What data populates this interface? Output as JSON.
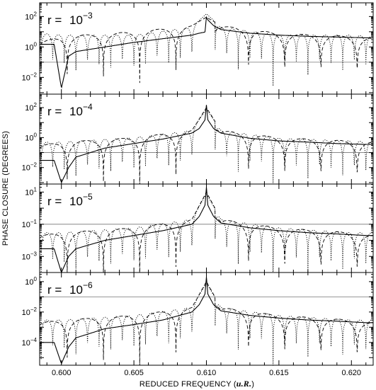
{
  "chart_data": {
    "type": "line",
    "xlabel_text": "REDUCED FREQUENCY (",
    "xlabel_unit": "u.R.",
    "xlabel_close": ")",
    "ylabel": "PHASE CLOSURE (DEGREES)",
    "xlim": [
      0.5985,
      0.6215
    ],
    "xticks": [
      0.6,
      0.605,
      0.61,
      0.615,
      0.62
    ],
    "xtick_labels": [
      "0.600",
      "0.605",
      "0.610",
      "0.615",
      "0.620"
    ],
    "y_scale": "log",
    "grid": false,
    "legend": "none",
    "resonance_x": 0.61,
    "series_styles": [
      "solid",
      "dashed",
      "dotted"
    ],
    "panels": [
      {
        "label_r": "r = ",
        "label_base": "10",
        "label_exp": "−3",
        "ylim_log10": [
          -3.1,
          2.9
        ],
        "ytick_labels": [
          {
            "base": "10",
            "exp": "2",
            "log": 2
          },
          {
            "base": "10",
            "exp": "0",
            "log": 0
          },
          {
            "base": "10",
            "exp": "−2",
            "log": -2
          }
        ],
        "reference_line": 0.1,
        "series": [
          {
            "style": "solid",
            "x": [
              0.5995,
              0.6,
              0.6005,
              0.601,
              0.603,
              0.605,
              0.607,
              0.609,
              0.6095,
              0.6099,
              0.61,
              0.6101,
              0.6105,
              0.611,
              0.613,
              0.615,
              0.617,
              0.619,
              0.621
            ],
            "y": [
              1.5,
              0.002,
              0.25,
              0.5,
              1.0,
              2.0,
              3.5,
              6.0,
              8.0,
              9.5,
              90,
              60,
              25,
              14,
              8,
              6,
              5,
              4.5,
              4.0
            ]
          },
          {
            "style": "dashed",
            "envelope_x": [
              0.5985,
              0.6,
              0.605,
              0.609,
              0.61,
              0.611,
              0.615,
              0.62,
              0.6215
            ],
            "envelope_y": [
              2.0,
              5.0,
              10.0,
              25.0,
              90.0,
              25.0,
              8.0,
              5.0,
              4.0
            ]
          },
          {
            "style": "dotted",
            "envelope_x": [
              0.5985,
              0.6,
              0.605,
              0.609,
              0.61,
              0.611,
              0.615,
              0.62,
              0.6215
            ],
            "envelope_y": [
              8.0,
              6.0,
              6.0,
              20.0,
              150.0,
              20.0,
              6.0,
              6.0,
              5.0
            ]
          }
        ]
      },
      {
        "label_r": "r = ",
        "label_base": "10",
        "label_exp": "−4",
        "ylim_log10": [
          -3.1,
          2.9
        ],
        "ytick_labels": [
          {
            "base": "10",
            "exp": "2",
            "log": 2
          },
          {
            "base": "10",
            "exp": "0",
            "log": 0
          },
          {
            "base": "10",
            "exp": "−2",
            "log": -2
          }
        ],
        "reference_line": 0.1,
        "series": [
          {
            "style": "solid",
            "x": [
              0.5995,
              0.6,
              0.6005,
              0.601,
              0.603,
              0.605,
              0.607,
              0.609,
              0.6095,
              0.6099,
              0.61,
              0.6101,
              0.6105,
              0.611,
              0.613,
              0.615,
              0.617,
              0.619,
              0.621
            ],
            "y": [
              0.03,
              0.001,
              0.01,
              0.05,
              0.2,
              0.4,
              0.8,
              2.0,
              4.0,
              15.0,
              150.0,
              15.0,
              4.0,
              2.0,
              0.9,
              0.6,
              0.5,
              0.4,
              0.35
            ]
          },
          {
            "style": "dashed",
            "envelope_x": [
              0.5985,
              0.6,
              0.605,
              0.609,
              0.61,
              0.611,
              0.615,
              0.62,
              0.6215
            ],
            "envelope_y": [
              0.3,
              0.5,
              1.0,
              3.0,
              100.0,
              3.0,
              1.0,
              0.6,
              0.5
            ]
          },
          {
            "style": "dotted",
            "envelope_x": [
              0.5985,
              0.6,
              0.605,
              0.609,
              0.61,
              0.611,
              0.615,
              0.62,
              0.6215
            ],
            "envelope_y": [
              0.5,
              0.5,
              1.0,
              3.0,
              80.0,
              3.0,
              0.9,
              0.6,
              0.5
            ]
          }
        ]
      },
      {
        "label_r": "r = ",
        "label_base": "10",
        "label_exp": "−5",
        "ylim_log10": [
          -4.0,
          1.5
        ],
        "ytick_labels": [
          {
            "base": "10",
            "exp": "1",
            "log": 1
          },
          {
            "base": "10",
            "exp": "−1",
            "log": -1
          },
          {
            "base": "10",
            "exp": "−3",
            "log": -3
          }
        ],
        "reference_line": 0.1,
        "series": [
          {
            "style": "solid",
            "x": [
              0.5995,
              0.6,
              0.6005,
              0.601,
              0.603,
              0.605,
              0.607,
              0.609,
              0.6095,
              0.6099,
              0.61,
              0.6101,
              0.6105,
              0.611,
              0.613,
              0.615,
              0.617,
              0.619,
              0.621
            ],
            "y": [
              0.003,
              0.0001,
              0.001,
              0.003,
              0.01,
              0.02,
              0.04,
              0.1,
              0.3,
              1.5,
              20.0,
              1.5,
              0.3,
              0.12,
              0.06,
              0.04,
              0.03,
              0.025,
              0.02
            ]
          },
          {
            "style": "dashed",
            "envelope_x": [
              0.5985,
              0.6,
              0.605,
              0.609,
              0.61,
              0.611,
              0.615,
              0.62,
              0.6215
            ],
            "envelope_y": [
              0.02,
              0.03,
              0.06,
              0.2,
              10.0,
              0.2,
              0.06,
              0.03,
              0.02
            ]
          },
          {
            "style": "dotted",
            "envelope_x": [
              0.5985,
              0.6,
              0.605,
              0.609,
              0.61,
              0.611,
              0.615,
              0.62,
              0.6215
            ],
            "envelope_y": [
              0.03,
              0.03,
              0.06,
              0.2,
              8.0,
              0.2,
              0.06,
              0.03,
              0.03
            ]
          }
        ]
      },
      {
        "label_r": "r = ",
        "label_base": "10",
        "label_exp": "−6",
        "ylim_log10": [
          -5.5,
          0.6
        ],
        "ytick_labels": [
          {
            "base": "10",
            "exp": "0",
            "log": 0
          },
          {
            "base": "10",
            "exp": "−2",
            "log": -2
          },
          {
            "base": "10",
            "exp": "−4",
            "log": -4
          }
        ],
        "reference_line": 0.1,
        "series": [
          {
            "style": "solid",
            "x": [
              0.5995,
              0.6,
              0.6005,
              0.601,
              0.603,
              0.605,
              0.607,
              0.609,
              0.6095,
              0.6099,
              0.61,
              0.6101,
              0.6105,
              0.611,
              0.613,
              0.615,
              0.617,
              0.619,
              0.621
            ],
            "y": [
              0.0001,
              4e-06,
              5e-05,
              0.0002,
              0.0008,
              0.0015,
              0.003,
              0.01,
              0.03,
              0.15,
              2.0,
              0.15,
              0.03,
              0.012,
              0.006,
              0.004,
              0.003,
              0.0025,
              0.002
            ]
          },
          {
            "style": "dashed",
            "envelope_x": [
              0.5985,
              0.6,
              0.605,
              0.609,
              0.61,
              0.611,
              0.615,
              0.62,
              0.6215
            ],
            "envelope_y": [
              0.002,
              0.003,
              0.006,
              0.02,
              1.0,
              0.02,
              0.006,
              0.003,
              0.002
            ]
          },
          {
            "style": "dotted",
            "envelope_x": [
              0.5985,
              0.6,
              0.605,
              0.609,
              0.61,
              0.611,
              0.615,
              0.62,
              0.6215
            ],
            "envelope_y": [
              0.003,
              0.003,
              0.006,
              0.02,
              0.8,
              0.02,
              0.006,
              0.003,
              0.003
            ]
          }
        ]
      }
    ]
  }
}
